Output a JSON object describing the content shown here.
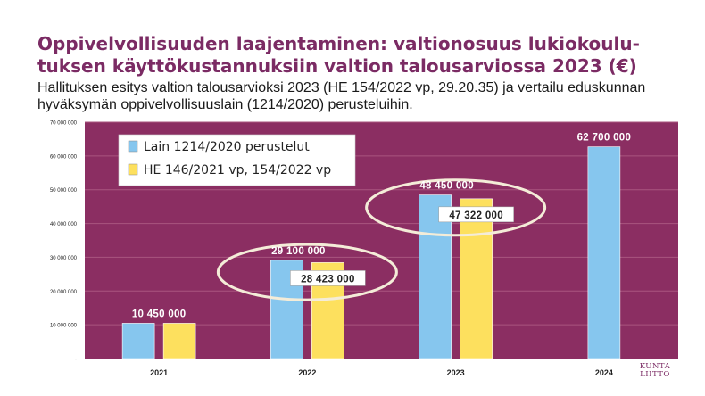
{
  "header": {
    "title": "Oppivelvollisuuden laajentaminen: valtionosuus lukiokoulu­tuksen käyttökustannuksiin valtion talousarviossa 2023 (€)",
    "subtitle": "Hallituksen esitys valtion talousarvioksi 2023 (HE 154/2022 vp, 29.20.35) ja vertailu eduskunnan hyväksymän oppivelvollisuuslain (1214/2020) perusteluihin."
  },
  "logo": {
    "line1": "KUNTA",
    "line2": "LIITTO"
  },
  "chart_data": {
    "type": "bar",
    "categories": [
      "2021",
      "2022",
      "2023",
      "2024"
    ],
    "series": [
      {
        "name": "Lain 1214/2020 perustelut",
        "color": "#86c6ee",
        "values": [
          10450000,
          29100000,
          48450000,
          62700000
        ],
        "labels": [
          "10 450 000",
          "29 100 000",
          "48 450 000",
          "62 700 000"
        ]
      },
      {
        "name": "HE 146/2021 vp, 154/2022 vp",
        "color": "#fde05e",
        "values": [
          10450000,
          28423000,
          47322000,
          null
        ],
        "labels": [
          null,
          "28 423 000",
          "47 322 000",
          null
        ]
      }
    ],
    "yticks": [
      {
        "value": 0,
        "label": "-"
      },
      {
        "value": 10000000,
        "label": "10 000 000"
      },
      {
        "value": 20000000,
        "label": "20 000 000"
      },
      {
        "value": 30000000,
        "label": "30 000 000"
      },
      {
        "value": 40000000,
        "label": "40 000 000"
      },
      {
        "value": 50000000,
        "label": "50 000 000"
      },
      {
        "value": 60000000,
        "label": "60 000 000"
      },
      {
        "value": 70000000,
        "label": "70 000 000"
      }
    ],
    "ylim": [
      0,
      70000000
    ],
    "grid": true,
    "legend_position": "top-left",
    "highlighted_categories": [
      "2022",
      "2023"
    ],
    "colors": {
      "plot_background": "#8b2e62",
      "gridline": "#a9557f",
      "data_label": "#ffffff",
      "boxed_label_background": "#ffffff",
      "boxed_label_text": "#222222",
      "highlight_ellipse": "#f4ecd8",
      "axis_label": "#222222"
    }
  }
}
